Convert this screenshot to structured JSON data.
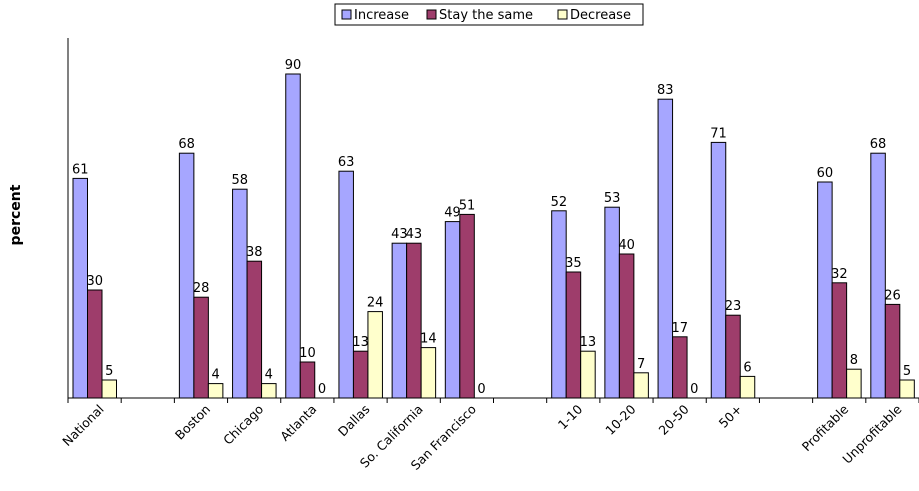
{
  "chart_data": {
    "type": "bar",
    "title": "",
    "xlabel": "",
    "ylabel": "percent",
    "ylim": [
      0,
      100
    ],
    "grid": false,
    "legend_position": "top-center",
    "categories": [
      "National",
      "",
      "Boston",
      "Chicago",
      "Atlanta",
      "Dallas",
      "So. California",
      "San Francisco",
      "",
      "1-10",
      "10-20",
      "20-50",
      "50+",
      "",
      "Profitable",
      "Unprofitable"
    ],
    "series": [
      {
        "name": "Increase",
        "color": "#a6a6ff",
        "values": [
          61,
          null,
          68,
          58,
          90,
          63,
          43,
          49,
          null,
          52,
          53,
          83,
          71,
          null,
          60,
          68
        ]
      },
      {
        "name": "Stay the same",
        "color": "#9e3d6b",
        "values": [
          30,
          null,
          28,
          38,
          10,
          13,
          43,
          51,
          null,
          35,
          40,
          17,
          23,
          null,
          32,
          26
        ]
      },
      {
        "name": "Decrease",
        "color": "#ffffcc",
        "values": [
          5,
          null,
          4,
          4,
          0,
          24,
          14,
          0,
          null,
          13,
          7,
          0,
          6,
          null,
          8,
          5
        ]
      }
    ]
  }
}
